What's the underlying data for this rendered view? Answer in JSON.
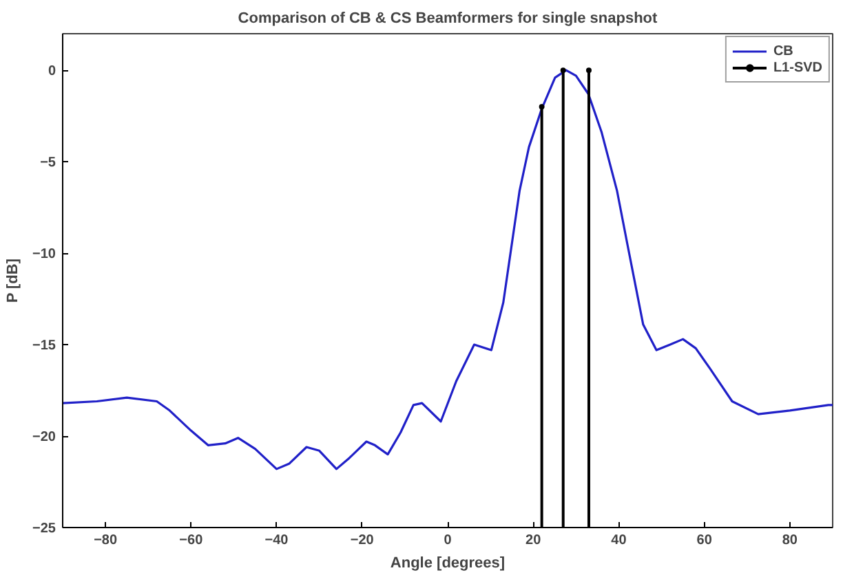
{
  "chart_data": {
    "type": "line",
    "title": "Comparison of CB & CS Beamformers for single snapshot",
    "xlabel": "Angle [degrees]",
    "ylabel": "P [dB]",
    "xlim": [
      -90,
      90
    ],
    "ylim": [
      -25,
      2
    ],
    "xticks": [
      -80,
      -60,
      -40,
      -20,
      0,
      20,
      40,
      60,
      80
    ],
    "yticks": [
      -25,
      -20,
      -15,
      -10,
      -5,
      0
    ],
    "legend": "top right",
    "grid": false,
    "series": [
      {
        "name": "CB",
        "color": "#2020c8",
        "x": [
          -90,
          -82,
          -75,
          -68,
          -65,
          -60,
          -56,
          -52,
          -49,
          -45,
          -40,
          -37,
          -33,
          -30,
          -26,
          -23,
          -19,
          -17,
          -14,
          -11,
          -8,
          -6,
          -1.6,
          2,
          6.2,
          10.2,
          13,
          16.8,
          19,
          22,
          25.1,
          27.7,
          30,
          32.9,
          36,
          39.6,
          42,
          45.7,
          48.8,
          52,
          55,
          58,
          61.3,
          66.5,
          72.6,
          80,
          89,
          90
        ],
        "values": [
          -18.2,
          -18.1,
          -17.9,
          -18.1,
          -18.6,
          -19.7,
          -20.5,
          -20.4,
          -20.1,
          -20.7,
          -21.8,
          -21.5,
          -20.6,
          -20.8,
          -21.8,
          -21.2,
          -20.3,
          -20.5,
          -21.0,
          -19.8,
          -18.3,
          -18.2,
          -19.2,
          -17.0,
          -15.0,
          -15.3,
          -12.7,
          -6.6,
          -4.2,
          -2.1,
          -0.4,
          0,
          -0.3,
          -1.3,
          -3.4,
          -6.6,
          -9.5,
          -13.9,
          -15.3,
          -15.0,
          -14.7,
          -15.2,
          -16.3,
          -18.1,
          -18.8,
          -18.6,
          -18.3,
          -18.3
        ]
      },
      {
        "name": "L1-SVD",
        "color": "#000000",
        "type": "lollipop",
        "x": [
          22,
          27,
          33
        ],
        "values": [
          -2,
          0,
          0
        ]
      }
    ]
  }
}
